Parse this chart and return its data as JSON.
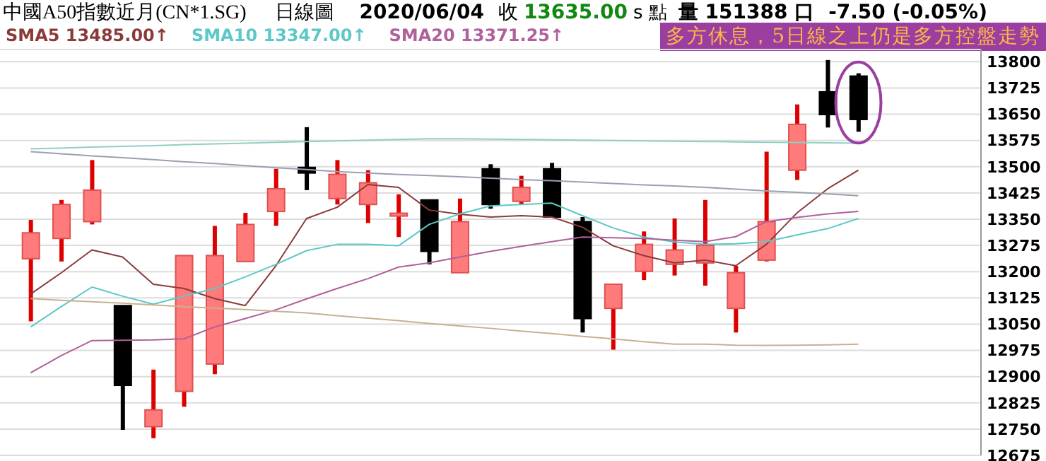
{
  "chart_data": {
    "type": "candlestick",
    "categories": [
      null,
      null,
      null,
      null,
      null,
      null,
      null,
      null,
      null,
      null,
      null,
      null,
      null,
      null,
      null,
      null,
      null,
      null,
      null,
      null,
      null,
      null,
      null,
      null,
      null,
      null,
      null,
      null
    ],
    "ohlc": [
      [
        13237,
        13348,
        13058,
        13311
      ],
      [
        13295,
        13405,
        13229,
        13392
      ],
      [
        13343,
        13519,
        13335,
        13433
      ],
      [
        13103,
        13103,
        12748,
        12875
      ],
      [
        12757,
        12920,
        12724,
        12805
      ],
      [
        12858,
        13246,
        12814,
        13246
      ],
      [
        12936,
        13331,
        12907,
        13246
      ],
      [
        13229,
        13368,
        13229,
        13335
      ],
      [
        13372,
        13494,
        13331,
        13437
      ],
      [
        13498,
        13613,
        13433,
        13482
      ],
      [
        13409,
        13519,
        13392,
        13478
      ],
      [
        13392,
        13490,
        13339,
        13454
      ],
      [
        13361,
        13421,
        13299,
        13367
      ],
      [
        13405,
        13405,
        13221,
        13258
      ],
      [
        13197,
        13409,
        13197,
        13343
      ],
      [
        13494,
        13507,
        13380,
        13392
      ],
      [
        13401,
        13474,
        13392,
        13441
      ],
      [
        13494,
        13511,
        13356,
        13356
      ],
      [
        13343,
        13356,
        13026,
        13066
      ],
      [
        13095,
        13164,
        12977,
        13164
      ],
      [
        13201,
        13315,
        13176,
        13278
      ],
      [
        13221,
        13352,
        13189,
        13262
      ],
      [
        13225,
        13405,
        13160,
        13275
      ],
      [
        13095,
        13217,
        13026,
        13197
      ],
      [
        13233,
        13543,
        13229,
        13343
      ],
      [
        13490,
        13678,
        13462,
        13621
      ],
      [
        13714,
        13805,
        13612,
        13649
      ],
      [
        13759,
        13767,
        13600,
        13635
      ]
    ],
    "colors": [
      "#ff7b7b",
      "#ff7b7b",
      "#ff7b7b",
      "#000000",
      "#ff7b7b",
      "#ff7b7b",
      "#ff7b7b",
      "#ff7b7b",
      "#ff7b7b",
      "#000000",
      "#ff7b7b",
      "#ff7b7b",
      "#ff7b7b",
      "#000000",
      "#ff7b7b",
      "#000000",
      "#ff7b7b",
      "#000000",
      "#000000",
      "#ff7b7b",
      "#ff7b7b",
      "#ff7b7b",
      "#ff7b7b",
      "#ff7b7b",
      "#ff7b7b",
      "#ff7b7b",
      "#000000",
      "#000000"
    ],
    "series": [
      {
        "type": "line",
        "name": "SMA5 13485.00↑",
        "color": "#8b3a3a",
        "values": [
          13136,
          13197,
          13262,
          13242,
          13164,
          13152,
          13123,
          13103,
          13217,
          13352,
          13384,
          13449,
          13441,
          13376,
          13364,
          13356,
          13360,
          13356,
          13327,
          13274,
          13246,
          13225,
          13233,
          13217,
          13278,
          13368,
          13437,
          13490
        ]
      },
      {
        "type": "line",
        "name": "SMA10 13347.00↑",
        "color": "#5cc8c8",
        "values": [
          13042,
          13100,
          13156,
          13130,
          13107,
          13130,
          13152,
          13185,
          13221,
          13260,
          13278,
          13278,
          13274,
          13335,
          13365,
          13388,
          13392,
          13396,
          13360,
          13325,
          13299,
          13285,
          13278,
          13280,
          13286,
          13305,
          13323,
          13352
        ]
      },
      {
        "type": "line",
        "name": "SMA20 13371.25↑",
        "color": "#b0609a",
        "values": [
          12911,
          12960,
          13003,
          13004,
          13005,
          13008,
          13042,
          13066,
          13091,
          13122,
          13152,
          13180,
          13213,
          13225,
          13242,
          13258,
          13272,
          13286,
          13299,
          13297,
          13295,
          13290,
          13286,
          13300,
          13343,
          13355,
          13365,
          13372
        ]
      },
      {
        "type": "line",
        "color": "#9aa0b0",
        "values": [
          13543,
          13537,
          13531,
          13526,
          13520,
          13514,
          13509,
          13503,
          13497,
          13492,
          13486,
          13482,
          13478,
          13475,
          13471,
          13467,
          13463,
          13460,
          13456,
          13452,
          13448,
          13445,
          13441,
          13436,
          13431,
          13427,
          13422,
          13417
        ]
      },
      {
        "type": "line",
        "color": "#90cfc4",
        "values": [
          13551,
          13553,
          13556,
          13558,
          13560,
          13563,
          13565,
          13567,
          13570,
          13572,
          13574,
          13576,
          13578,
          13580,
          13580,
          13579,
          13578,
          13577,
          13576,
          13575,
          13574,
          13573,
          13572,
          13571,
          13570,
          13569,
          13568,
          13567
        ]
      },
      {
        "type": "line",
        "color": "#c8b090",
        "values": [
          13123,
          13118,
          13114,
          13110,
          13105,
          13100,
          13096,
          13092,
          13087,
          13082,
          13074,
          13067,
          13060,
          13052,
          13045,
          13038,
          13030,
          13023,
          13015,
          13008,
          13000,
          12993,
          12993,
          12990,
          12989,
          12990,
          12991,
          12993
        ]
      }
    ],
    "ylim": [
      12675,
      13835
    ],
    "yticks": [
      12675,
      12750,
      12825,
      12900,
      12975,
      13050,
      13125,
      13200,
      13275,
      13350,
      13425,
      13500,
      13575,
      13650,
      13725,
      13800
    ],
    "grid": "y",
    "legend": "top left",
    "tick_labels": "y",
    "annotations": [
      "中國A50指數近月(CN*1.SG)",
      "日線圖",
      "2020/06/04",
      "收",
      "13635.00",
      "s 點",
      "量 151388 口",
      "-7.50 (-0.05%)",
      "多方休息，5日線之上仍是多方控盤走勢"
    ]
  }
}
